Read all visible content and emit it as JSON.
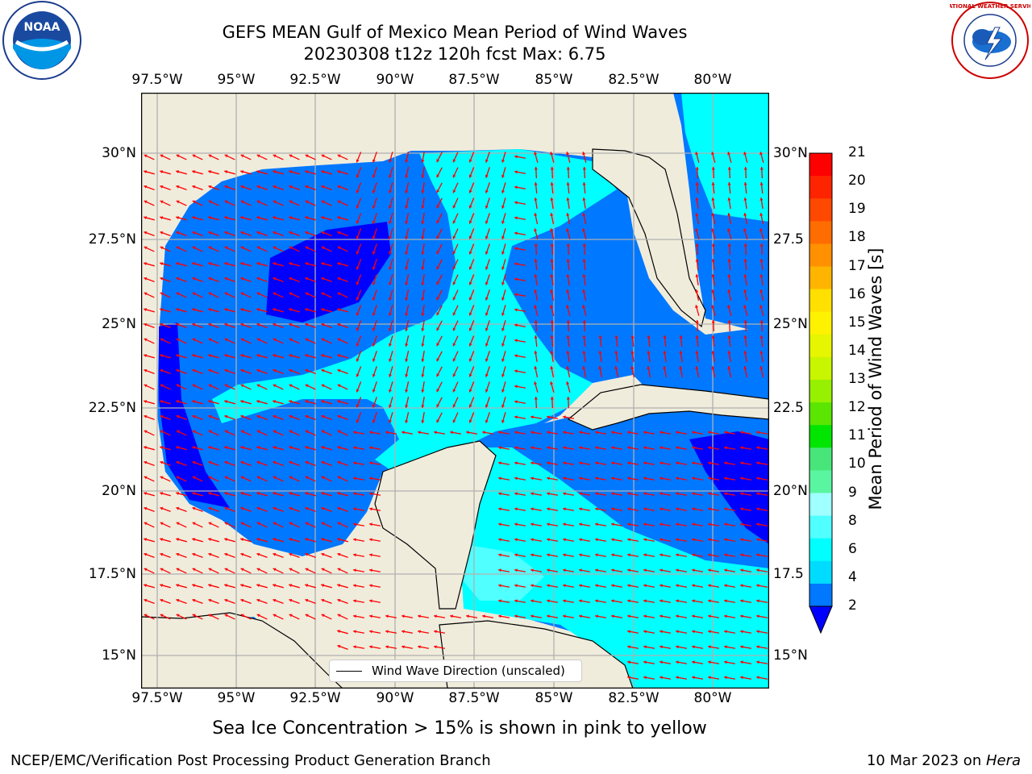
{
  "title": {
    "line1": "GEFS MEAN Gulf of Mexico Mean Period of Wind Waves",
    "line2": "20230308 t12z 120h fcst   Max: 6.75"
  },
  "axes": {
    "x_ticks": [
      "97.5°W",
      "95°W",
      "92.5°W",
      "90°W",
      "87.5°W",
      "85°W",
      "82.5°W",
      "80°W"
    ],
    "y_ticks_left": [
      "30°N",
      "27.5°N",
      "25°N",
      "22.5°N",
      "20°N",
      "17.5°N",
      "15°N"
    ],
    "y_ticks_right": [
      "30°N",
      "27.5",
      "25°N",
      "22.5",
      "20°N",
      "17.5",
      "15°N"
    ]
  },
  "colorbar": {
    "label": "Mean Period of Wind Waves [s]",
    "ticks": [
      "21",
      "20",
      "19",
      "18",
      "17",
      "16",
      "15",
      "14",
      "13",
      "12",
      "11",
      "10",
      "9",
      "8",
      "6",
      "4",
      "2"
    ],
    "colors": [
      "#ff0000",
      "#ff2400",
      "#ff4800",
      "#ff6c00",
      "#ff9000",
      "#ffb400",
      "#ffe000",
      "#fff200",
      "#e6f500",
      "#c8f500",
      "#96f000",
      "#5ae600",
      "#00e600",
      "#48e67a",
      "#5af5a0",
      "#a0ffff",
      "#50ffff",
      "#00ffff",
      "#00dcff",
      "#0078ff"
    ],
    "under_color": "#0000ff"
  },
  "legend": {
    "label": "Wind Wave Direction (unscaled)"
  },
  "map_colors": {
    "land": "#efecdc",
    "period_2_4": "#0078ff",
    "period_under_2": "#0000ff",
    "period_4_6": "#00ffff",
    "period_6_8": "#50ffff",
    "arrows": "#ff0000",
    "grid": "#b0b0b0"
  },
  "logos": {
    "left": {
      "name": "noaa-logo",
      "text": "NOAA"
    },
    "right": {
      "name": "nws-logo",
      "text": "NATIONAL WEATHER SERVICE"
    }
  },
  "note": "Sea Ice Concentration > 15% is shown in pink to yellow",
  "footer": {
    "left": "NCEP/EMC/Verification Post Processing Product Generation Branch",
    "right_prefix": "10 Mar 2023 on ",
    "right_host": "Hera"
  }
}
